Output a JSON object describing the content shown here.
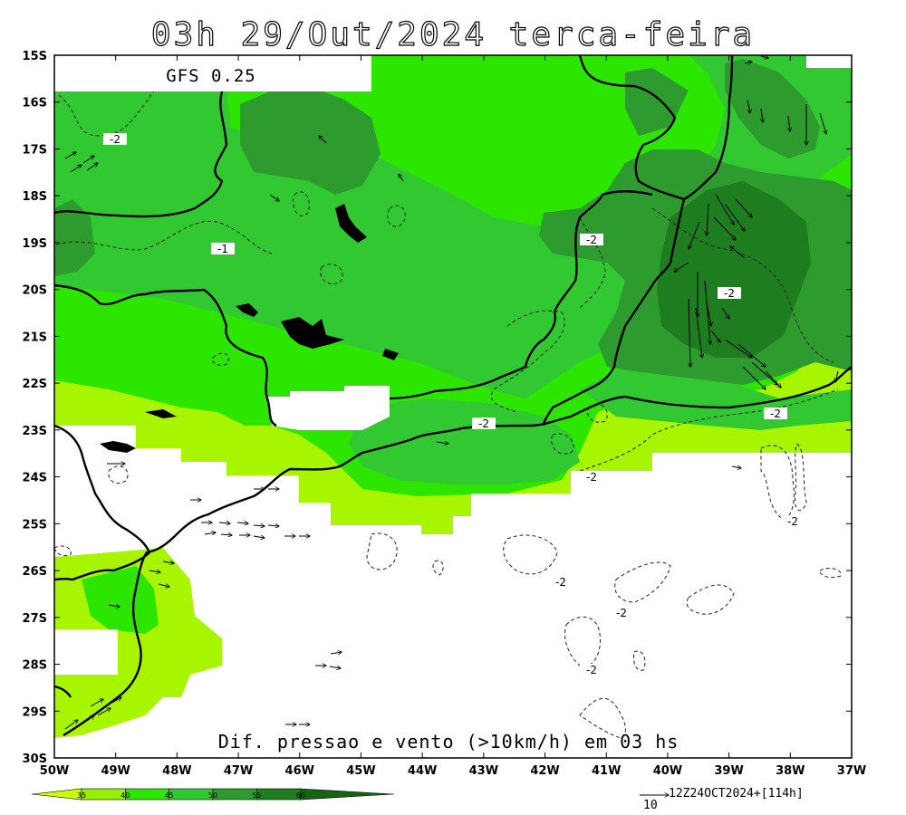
{
  "map": {
    "title": "03h 29/Out/2024 terca-feira",
    "model": "GFS 0.25",
    "caption": "Dif. pressao e vento (>10km/h) em 03 hs",
    "run_info": "12Z24OCT2024+[114h]",
    "vector_scale_label": "10",
    "lon_range": [
      -50,
      -37
    ],
    "lat_range": [
      -30,
      -15
    ],
    "lon_ticks": [
      "50W",
      "49W",
      "48W",
      "47W",
      "46W",
      "45W",
      "44W",
      "43W",
      "42W",
      "41W",
      "40W",
      "39W",
      "38W",
      "37W"
    ],
    "lat_ticks": [
      "15S",
      "16S",
      "17S",
      "18S",
      "19S",
      "20S",
      "21S",
      "22S",
      "23S",
      "24S",
      "25S",
      "26S",
      "27S",
      "28S",
      "29S",
      "30S"
    ],
    "contour_labels": [
      "-2",
      "-1",
      "-2",
      "-2",
      "-2",
      "-2",
      "-2",
      "-2",
      "-2",
      "-2",
      "-2"
    ],
    "colorbar": {
      "levels": [
        "35",
        "40",
        "45",
        "50",
        "55",
        "60"
      ],
      "colors": [
        "#c8ff00",
        "#96f000",
        "#2de600",
        "#32c832",
        "#2d9b2d",
        "#1e7d1e",
        "#146414"
      ]
    },
    "fill_colors": {
      "lightest": "#a8f500",
      "light": "#96f000",
      "bright": "#2de600",
      "mid": "#32c832",
      "dark": "#2d9b2d",
      "darkest": "#1e7d1e"
    }
  }
}
